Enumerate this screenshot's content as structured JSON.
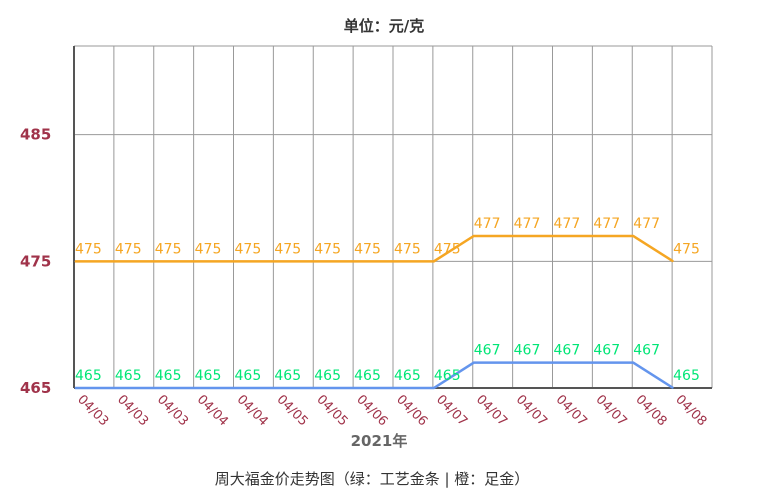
{
  "chart_data": {
    "type": "line",
    "unit_label": "单位：元/克",
    "caption": "周大福金价走势图（绿：工艺金条  |   橙：足金）",
    "xlabel": "2021年",
    "ylabel": "",
    "categories": [
      "04/03",
      "04/03",
      "04/03",
      "04/04",
      "04/04",
      "04/05",
      "04/05",
      "04/06",
      "04/06",
      "04/07",
      "04/07",
      "04/07",
      "04/07",
      "04/07",
      "04/08",
      "04/08"
    ],
    "ylim": [
      465,
      492
    ],
    "yticks": [
      "465",
      "475",
      "485"
    ],
    "grid": true,
    "series": [
      {
        "color": "#f5a623",
        "label_color": "#f5a623",
        "values": [
          475,
          475,
          475,
          475,
          475,
          475,
          475,
          475,
          475,
          475,
          477,
          477,
          477,
          477,
          477,
          475
        ]
      },
      {
        "color": "#6495ed",
        "label_color": "#00e676",
        "values": [
          465,
          465,
          465,
          465,
          465,
          465,
          465,
          465,
          465,
          465,
          467,
          467,
          467,
          467,
          467,
          465
        ]
      }
    ]
  }
}
